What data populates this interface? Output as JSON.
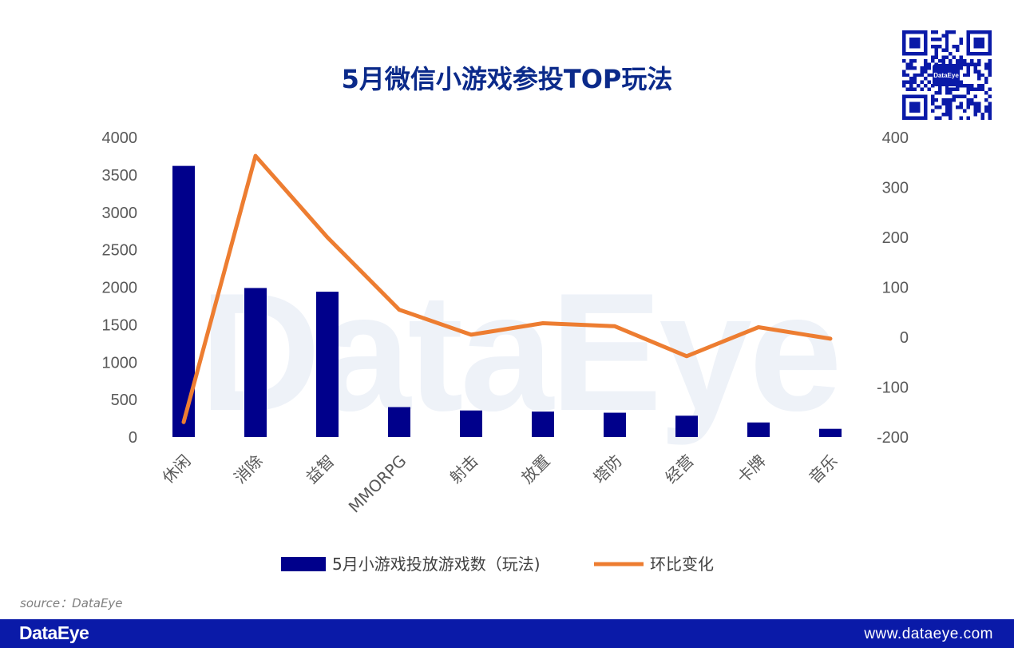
{
  "title": "5月微信小游戏参投TOP玩法",
  "watermark": "DataEye",
  "qr_logo_text": "DataEye",
  "source": "source：DataEye",
  "footer": {
    "logo": "DataEye",
    "url": "www.dataeye.com"
  },
  "colors": {
    "bar": "#00008b",
    "line": "#ed7d31",
    "title": "#0b2a8a",
    "footer": "#0a1aa8"
  },
  "chart_data": {
    "type": "bar",
    "title": "5月微信小游戏参投TOP玩法",
    "categories": [
      "休闲",
      "消除",
      "益智",
      "MMORPG",
      "射击",
      "放置",
      "塔防",
      "经营",
      "卡牌",
      "音乐"
    ],
    "series": [
      {
        "name": "5月小游戏投放游戏数（玩法)",
        "type": "bar",
        "axis": "left",
        "values": [
          3620,
          1990,
          1940,
          400,
          355,
          340,
          325,
          285,
          195,
          110
        ]
      },
      {
        "name": "环比变化",
        "type": "line",
        "axis": "right",
        "values": [
          -170,
          363,
          200,
          55,
          5,
          28,
          22,
          -38,
          20,
          -3
        ]
      }
    ],
    "y_left": {
      "min": 0,
      "max": 4000,
      "ticks": [
        0,
        500,
        1000,
        1500,
        2000,
        2500,
        3000,
        3500,
        4000
      ]
    },
    "y_right": {
      "min": -200,
      "max": 400,
      "ticks": [
        -200,
        -100,
        0,
        100,
        200,
        300,
        400
      ]
    },
    "grid": false,
    "legend_position": "bottom"
  }
}
